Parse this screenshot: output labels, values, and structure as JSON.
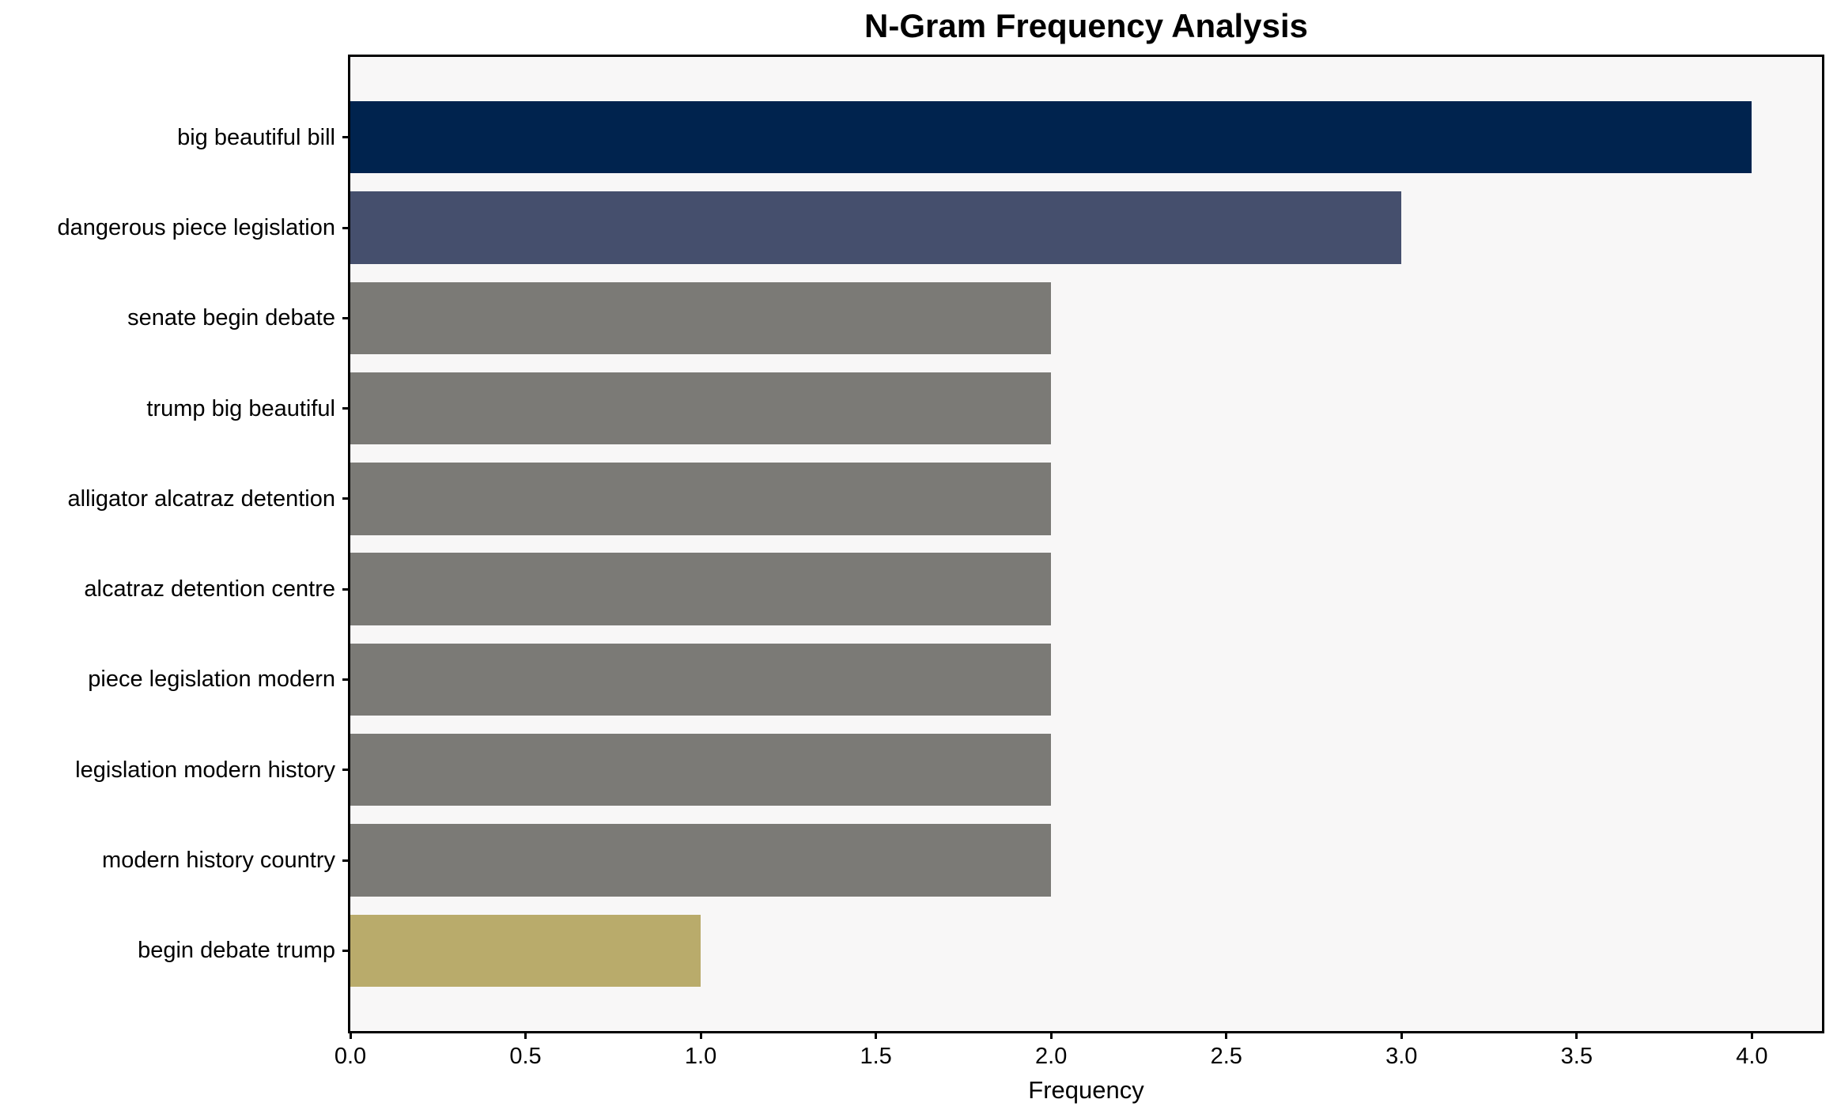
{
  "chart_data": {
    "type": "bar",
    "orientation": "horizontal",
    "title": "N-Gram Frequency Analysis",
    "xlabel": "Frequency",
    "ylabel": "",
    "categories": [
      "big beautiful bill",
      "dangerous piece legislation",
      "senate begin debate",
      "trump big beautiful",
      "alligator alcatraz detention",
      "alcatraz detention centre",
      "piece legislation modern",
      "legislation modern history",
      "modern history country",
      "begin debate trump"
    ],
    "values": [
      4,
      3,
      2,
      2,
      2,
      2,
      2,
      2,
      2,
      1
    ],
    "bar_colors": [
      "#00234E",
      "#454F6D",
      "#7B7A76",
      "#7B7A76",
      "#7B7A76",
      "#7B7A76",
      "#7B7A76",
      "#7B7A76",
      "#7B7A76",
      "#B9AB6B"
    ],
    "xlim": [
      0,
      4.2
    ],
    "x_tick_labels": [
      "0.0",
      "0.5",
      "1.0",
      "1.5",
      "2.0",
      "2.5",
      "3.0",
      "3.5",
      "4.0"
    ],
    "x_tick_values": [
      0,
      0.5,
      1,
      1.5,
      2,
      2.5,
      3,
      3.5,
      4
    ],
    "grid": false,
    "legend": null,
    "plot_background": "#F8F7F7",
    "figure_background": "#FFFFFF",
    "axis_color": "#000000",
    "text_color": "#000000"
  }
}
